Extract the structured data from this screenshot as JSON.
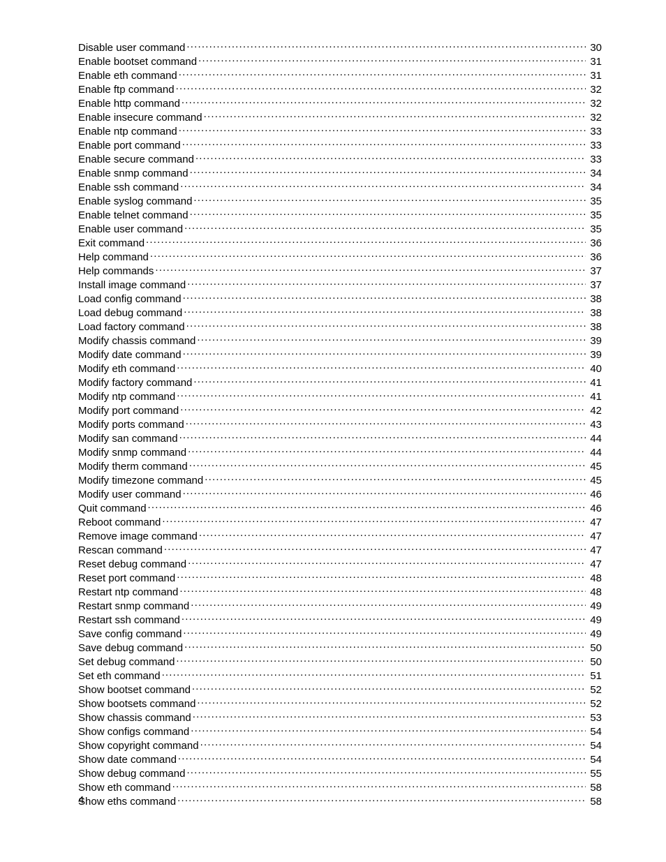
{
  "page_number": "4",
  "font": {
    "family": "Futura / Century Gothic style",
    "size_pt": 11,
    "color": "#000000",
    "leader_char": "."
  },
  "toc": [
    {
      "title": "Disable user command",
      "page": "30"
    },
    {
      "title": "Enable bootset command",
      "page": "31"
    },
    {
      "title": "Enable eth command",
      "page": "31"
    },
    {
      "title": "Enable ftp command",
      "page": "32"
    },
    {
      "title": "Enable http command",
      "page": "32"
    },
    {
      "title": "Enable insecure command",
      "page": "32"
    },
    {
      "title": "Enable ntp command",
      "page": "33"
    },
    {
      "title": "Enable port command",
      "page": "33"
    },
    {
      "title": "Enable secure command",
      "page": "33"
    },
    {
      "title": "Enable snmp command",
      "page": "34"
    },
    {
      "title": "Enable ssh command",
      "page": "34"
    },
    {
      "title": "Enable syslog command",
      "page": "35"
    },
    {
      "title": "Enable telnet command",
      "page": "35"
    },
    {
      "title": "Enable user command",
      "page": "35"
    },
    {
      "title": "Exit command",
      "page": "36"
    },
    {
      "title": "Help command",
      "page": "36"
    },
    {
      "title": "Help commands",
      "page": "37"
    },
    {
      "title": "Install image command",
      "page": "37"
    },
    {
      "title": "Load config command",
      "page": "38"
    },
    {
      "title": "Load debug command",
      "page": "38"
    },
    {
      "title": "Load factory command",
      "page": "38"
    },
    {
      "title": "Modify chassis command",
      "page": "39"
    },
    {
      "title": "Modify date command",
      "page": "39"
    },
    {
      "title": "Modify eth command",
      "page": "40"
    },
    {
      "title": "Modify factory command",
      "page": "41"
    },
    {
      "title": "Modify ntp command",
      "page": "41"
    },
    {
      "title": "Modify port command",
      "page": "42"
    },
    {
      "title": "Modify ports command",
      "page": "43"
    },
    {
      "title": "Modify san command",
      "page": "44"
    },
    {
      "title": "Modify snmp command",
      "page": "44"
    },
    {
      "title": "Modify therm command",
      "page": "45"
    },
    {
      "title": "Modify timezone command",
      "page": "45"
    },
    {
      "title": "Modify user command",
      "page": "46"
    },
    {
      "title": "Quit command",
      "page": "46"
    },
    {
      "title": "Reboot command",
      "page": "47"
    },
    {
      "title": "Remove image command",
      "page": "47"
    },
    {
      "title": "Rescan command",
      "page": "47"
    },
    {
      "title": "Reset debug command",
      "page": "47"
    },
    {
      "title": "Reset port command",
      "page": "48"
    },
    {
      "title": "Restart ntp command",
      "page": "48"
    },
    {
      "title": "Restart snmp command",
      "page": "49"
    },
    {
      "title": "Restart ssh command",
      "page": "49"
    },
    {
      "title": "Save config command",
      "page": "49"
    },
    {
      "title": "Save debug command",
      "page": "50"
    },
    {
      "title": "Set debug command",
      "page": "50"
    },
    {
      "title": "Set eth command",
      "page": "51"
    },
    {
      "title": "Show bootset command",
      "page": "52"
    },
    {
      "title": "Show bootsets command",
      "page": "52"
    },
    {
      "title": "Show chassis command",
      "page": "53"
    },
    {
      "title": "Show configs command",
      "page": "54"
    },
    {
      "title": "Show copyright command",
      "page": "54"
    },
    {
      "title": "Show date command",
      "page": "54"
    },
    {
      "title": "Show debug command",
      "page": "55"
    },
    {
      "title": "Show eth command",
      "page": "58"
    },
    {
      "title": "Show eths command",
      "page": "58"
    }
  ]
}
